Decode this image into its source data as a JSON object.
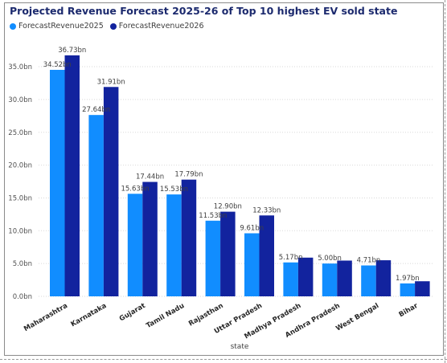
{
  "chart_data": {
    "type": "bar",
    "title": "Projected Revenue Forecast 2025-26 of Top 10 highest EV sold state",
    "xlabel": "state",
    "ylabel": "",
    "ylim": [
      0,
      40
    ],
    "yticks": [
      "0.0bn",
      "5.0bn",
      "10.0bn",
      "15.0bn",
      "20.0bn",
      "25.0bn",
      "30.0bn",
      "35.0bn"
    ],
    "ytick_values": [
      0,
      5,
      10,
      15,
      20,
      25,
      30,
      35
    ],
    "grid": true,
    "legend_position": "top-left",
    "categories": [
      "Maharashtra",
      "Karnataka",
      "Gujarat",
      "Tamil Nadu",
      "Rajasthan",
      "Uttar Pradesh",
      "Madhya Pradesh",
      "Andhra Pradesh",
      "West Bengal",
      "Bihar"
    ],
    "series": [
      {
        "name": "ForecastRevenue2025",
        "color": "#118dff",
        "values": [
          34.52,
          27.64,
          15.63,
          15.53,
          11.53,
          9.61,
          5.17,
          5.0,
          4.71,
          1.97
        ],
        "labels": [
          "34.52bn",
          "27.64bn",
          "15.63bn",
          "15.53bn",
          "11.53bn",
          "9.61bn",
          "5.17bn",
          "5.00bn",
          "4.71bn",
          "1.97bn"
        ]
      },
      {
        "name": "ForecastRevenue2026",
        "color": "#12239e",
        "values": [
          36.73,
          31.91,
          17.44,
          17.79,
          12.9,
          12.33,
          5.9,
          5.45,
          5.5,
          2.3
        ],
        "labels": [
          "36.73bn",
          "31.91bn",
          "17.44bn",
          "17.79bn",
          "12.90bn",
          "12.33bn",
          "",
          "",
          "",
          ""
        ]
      }
    ]
  }
}
